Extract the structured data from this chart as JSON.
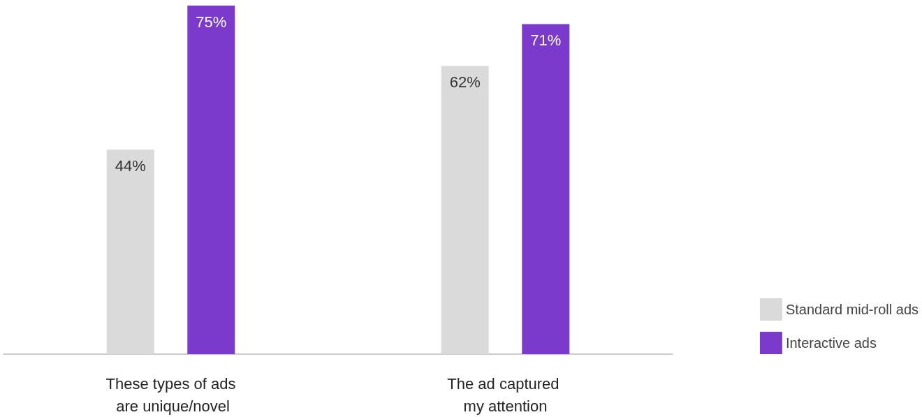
{
  "chart_data": {
    "type": "bar",
    "categories": [
      "These types of ads are unique/novel",
      "The ad captured my attention"
    ],
    "series": [
      {
        "name": "Standard mid-roll ads",
        "color": "#d9dad9",
        "values": [
          44,
          62
        ],
        "value_labels": [
          "44%",
          "62%"
        ]
      },
      {
        "name": "Interactive ads",
        "color": "#7b3acb",
        "values": [
          75,
          71
        ],
        "value_labels": [
          "75%",
          "71%"
        ]
      }
    ],
    "legend": "bottom right"
  }
}
